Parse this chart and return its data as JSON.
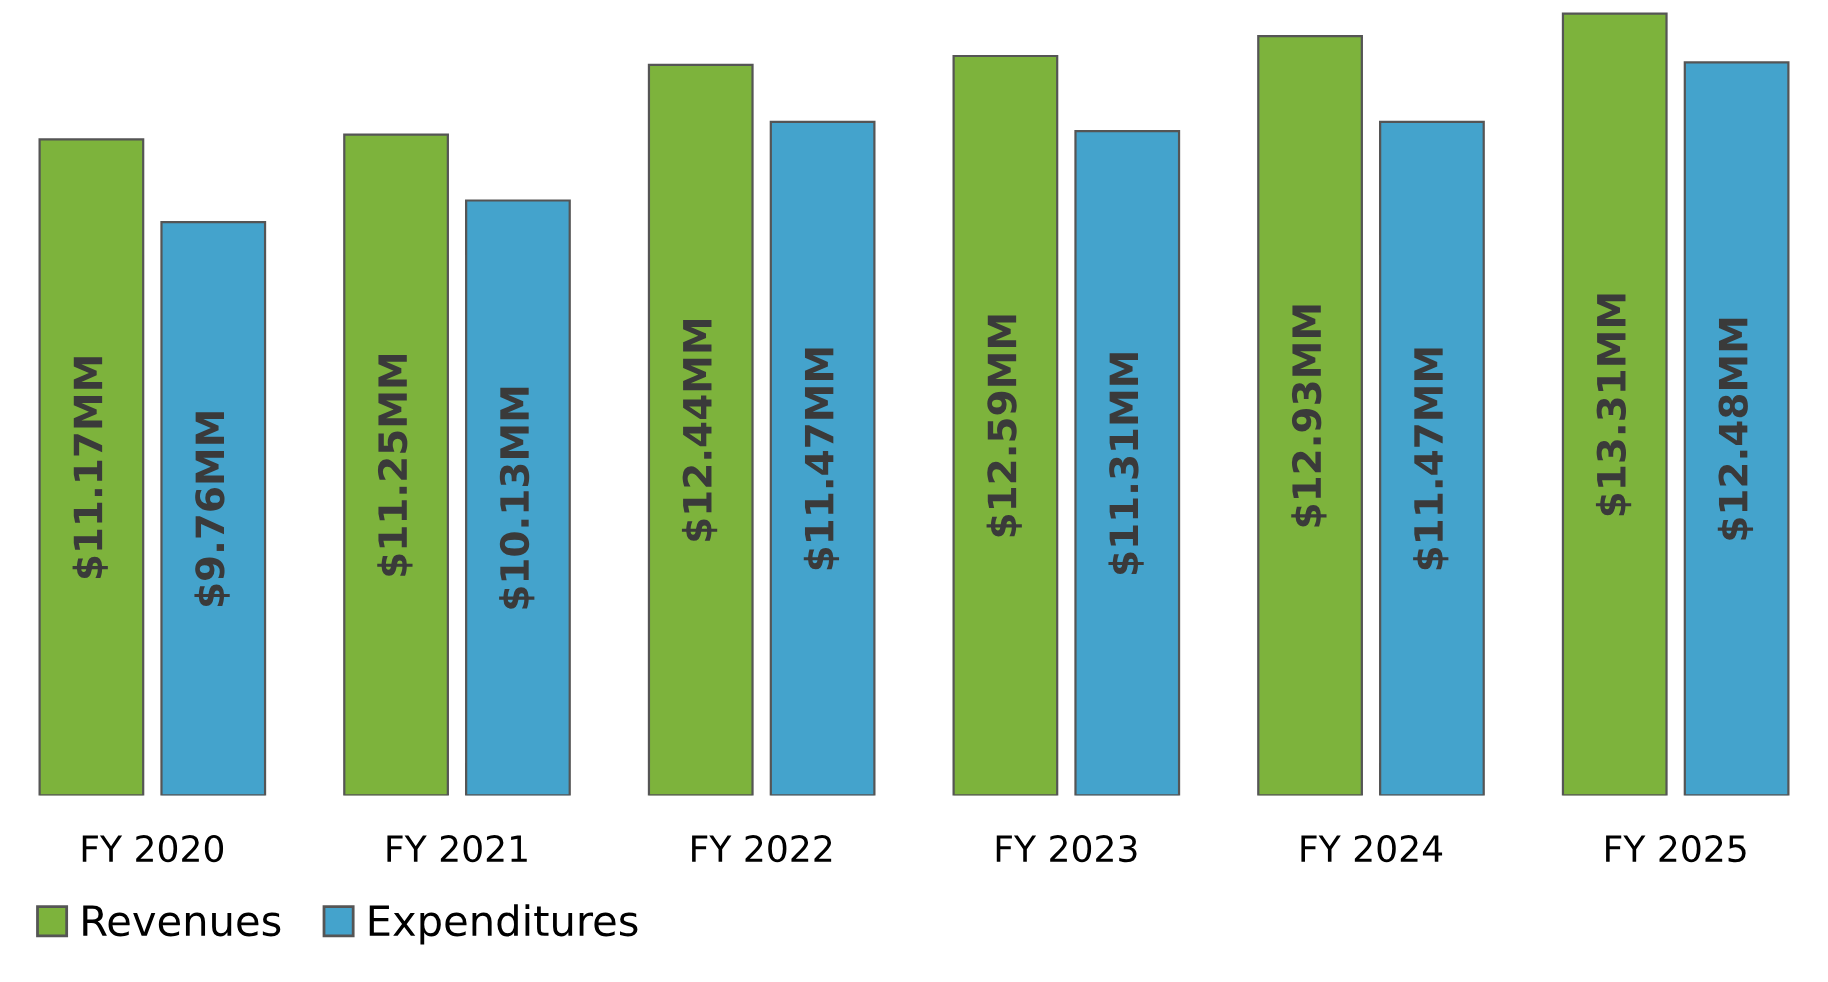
{
  "chart_data": {
    "type": "bar",
    "categories": [
      "FY 2020",
      "FY 2021",
      "FY 2022",
      "FY 2023",
      "FY 2024",
      "FY 2025"
    ],
    "series": [
      {
        "name": "Revenues",
        "color": "#7db33c",
        "values": [
          11.17,
          11.25,
          12.44,
          12.59,
          12.93,
          13.31
        ],
        "value_labels": [
          "$11.17MM",
          "$11.25MM",
          "$12.44MM",
          "$12.59MM",
          "$12.93MM",
          "$13.31MM"
        ]
      },
      {
        "name": "Expenditures",
        "color": "#44a3cc",
        "values": [
          9.76,
          10.13,
          11.47,
          11.31,
          11.47,
          12.48
        ],
        "value_labels": [
          "$9.76MM",
          "$10.13MM",
          "$11.47MM",
          "$11.31MM",
          "$11.47MM",
          "$12.48MM"
        ]
      }
    ],
    "legend": "bottom left",
    "grid": false
  }
}
